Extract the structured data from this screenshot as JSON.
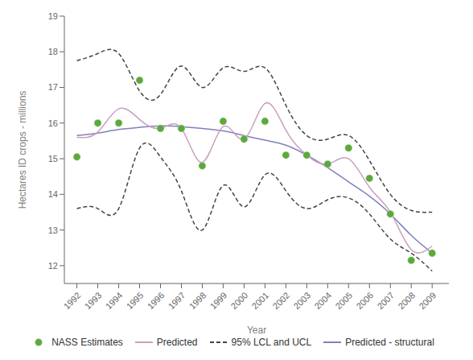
{
  "chart_data": {
    "type": "line",
    "x": [
      1992,
      1993,
      1994,
      1995,
      1996,
      1997,
      1998,
      1999,
      2000,
      2001,
      2002,
      2003,
      2004,
      2005,
      2006,
      2007,
      2008,
      2009
    ],
    "xlabel": "Year",
    "ylabel": "Hectares ID crops - millions",
    "xlim": [
      1991.4,
      2009.8
    ],
    "xticks": [
      1992,
      1993,
      1994,
      1995,
      1996,
      1997,
      1998,
      1999,
      2000,
      2001,
      2002,
      2003,
      2004,
      2005,
      2006,
      2007,
      2008,
      2009
    ],
    "ylim": [
      11.5,
      19
    ],
    "yticks": [
      12,
      13,
      14,
      15,
      16,
      17,
      18,
      19
    ],
    "grid": false,
    "legend": "bottom",
    "series": [
      {
        "name": "NASS Estimates",
        "type": "scatter",
        "marker": "circle",
        "color": "#5aaa3a",
        "values": [
          15.05,
          16.0,
          16.0,
          17.2,
          15.85,
          15.85,
          14.8,
          16.05,
          15.55,
          16.05,
          15.1,
          15.1,
          14.85,
          15.3,
          14.45,
          13.45,
          12.15,
          12.35
        ]
      },
      {
        "name": "Predicted",
        "type": "line",
        "line_style": "solid",
        "color": "#c9a0c0",
        "values": [
          15.6,
          15.75,
          16.4,
          16.1,
          15.85,
          15.85,
          14.9,
          15.9,
          15.55,
          16.55,
          15.8,
          15.1,
          14.85,
          15.0,
          14.2,
          13.5,
          12.45,
          12.55
        ]
      },
      {
        "name": "95% LCL and UCL",
        "type": "line",
        "line_style": "dashed",
        "color": "#444444",
        "upper": [
          17.75,
          17.95,
          17.95,
          16.9,
          16.8,
          17.6,
          17.0,
          17.55,
          17.45,
          17.55,
          16.5,
          15.65,
          15.55,
          15.65,
          14.95,
          14.0,
          13.55,
          13.5
        ],
        "lower": [
          13.6,
          13.6,
          13.6,
          15.3,
          15.05,
          14.1,
          13.0,
          14.25,
          13.65,
          14.55,
          14.1,
          13.6,
          13.85,
          13.9,
          13.45,
          12.75,
          12.35,
          11.85
        ]
      },
      {
        "name": "Predicted - structural",
        "type": "line",
        "line_style": "solid",
        "color": "#8080bb",
        "values": [
          15.65,
          15.72,
          15.82,
          15.88,
          15.92,
          15.9,
          15.85,
          15.78,
          15.65,
          15.52,
          15.38,
          15.1,
          14.75,
          14.35,
          13.95,
          13.45,
          12.85,
          12.35
        ]
      }
    ]
  }
}
